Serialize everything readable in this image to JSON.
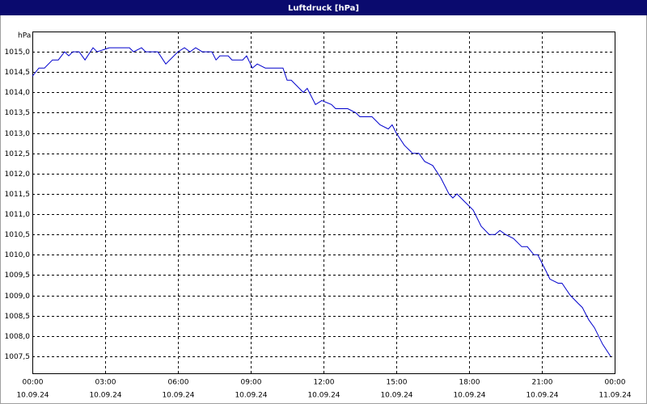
{
  "chart_data": {
    "type": "line",
    "title": "Luftdruck [hPa]",
    "y_unit": "hPa",
    "x": [
      0,
      0.27,
      0.5,
      0.83,
      1.07,
      1.33,
      1.5,
      1.67,
      1.93,
      2.17,
      2.5,
      2.67,
      3.17,
      4,
      4.17,
      4.5,
      4.67,
      5.17,
      5.5,
      6,
      6.27,
      6.5,
      6.73,
      7,
      7.4,
      7.57,
      7.73,
      8.07,
      8.23,
      8.67,
      8.83,
      9.07,
      9.27,
      9.6,
      10.33,
      10.5,
      10.67,
      11.17,
      11.33,
      11.67,
      11.93,
      12.33,
      12.5,
      13,
      13.33,
      13.5,
      14,
      14.33,
      14.67,
      14.83,
      15,
      15.33,
      15.67,
      15.93,
      16.17,
      16.5,
      16.83,
      17.17,
      17.33,
      17.5,
      17.83,
      18.17,
      18.5,
      18.83,
      19.07,
      19.27,
      19.5,
      19.83,
      20.17,
      20.4,
      20.67,
      20.83,
      21.17,
      21.33,
      21.67,
      21.83,
      22.17,
      22.5,
      22.67,
      22.93,
      23.17,
      23.5,
      23.83
    ],
    "series": [
      {
        "color": "#0000cc",
        "values": [
          1014.4,
          1014.6,
          1014.6,
          1014.8,
          1014.8,
          1015.0,
          1014.9,
          1015.0,
          1015.0,
          1014.8,
          1015.1,
          1015.0,
          1015.1,
          1015.1,
          1015.0,
          1015.1,
          1015.0,
          1015.0,
          1014.7,
          1015.0,
          1015.1,
          1015.0,
          1015.1,
          1015.0,
          1015.0,
          1014.8,
          1014.9,
          1014.9,
          1014.8,
          1014.8,
          1014.9,
          1014.6,
          1014.7,
          1014.6,
          1014.6,
          1014.3,
          1014.3,
          1014.0,
          1014.1,
          1013.7,
          1013.8,
          1013.7,
          1013.6,
          1013.6,
          1013.5,
          1013.4,
          1013.4,
          1013.2,
          1013.1,
          1013.2,
          1013.0,
          1012.7,
          1012.5,
          1012.5,
          1012.3,
          1012.2,
          1011.9,
          1011.5,
          1011.4,
          1011.5,
          1011.3,
          1011.1,
          1010.7,
          1010.5,
          1010.5,
          1010.6,
          1010.5,
          1010.4,
          1010.2,
          1010.2,
          1010.0,
          1010.0,
          1009.6,
          1009.4,
          1009.3,
          1009.3,
          1009.0,
          1008.8,
          1008.7,
          1008.4,
          1008.2,
          1007.8,
          1007.5
        ]
      }
    ],
    "xlim": [
      0,
      24
    ],
    "xticks": [
      {
        "value": 0,
        "label": [
          "00:00",
          "10.09.24"
        ]
      },
      {
        "value": 3,
        "label": [
          "03:00",
          "10.09.24"
        ]
      },
      {
        "value": 6,
        "label": [
          "06:00",
          "10.09.24"
        ]
      },
      {
        "value": 9,
        "label": [
          "09:00",
          "10.09.24"
        ]
      },
      {
        "value": 12,
        "label": [
          "12:00",
          "10.09.24"
        ]
      },
      {
        "value": 15,
        "label": [
          "15:00",
          "10.09.24"
        ]
      },
      {
        "value": 18,
        "label": [
          "18:00",
          "10.09.24"
        ]
      },
      {
        "value": 21,
        "label": [
          "21:00",
          "10.09.24"
        ]
      },
      {
        "value": 24,
        "label": [
          "00:00",
          "11.09.24"
        ]
      }
    ],
    "ylim": [
      1007.08,
      1015.5
    ],
    "yticks": [
      {
        "value": 1007.5,
        "label": "1007,5"
      },
      {
        "value": 1008,
        "label": "1008,0"
      },
      {
        "value": 1008.5,
        "label": "1008,5"
      },
      {
        "value": 1009,
        "label": "1009,0"
      },
      {
        "value": 1009.5,
        "label": "1009,5"
      },
      {
        "value": 1010,
        "label": "1010,0"
      },
      {
        "value": 1010.5,
        "label": "1010,5"
      },
      {
        "value": 1011,
        "label": "1011,0"
      },
      {
        "value": 1011.5,
        "label": "1011,5"
      },
      {
        "value": 1012,
        "label": "1012,0"
      },
      {
        "value": 1012.5,
        "label": "1012,5"
      },
      {
        "value": 1013,
        "label": "1013,0"
      },
      {
        "value": 1013.5,
        "label": "1013,5"
      },
      {
        "value": 1014,
        "label": "1014,0"
      },
      {
        "value": 1014.5,
        "label": "1014,5"
      },
      {
        "value": 1015,
        "label": "1015,0"
      }
    ],
    "grid": true
  }
}
